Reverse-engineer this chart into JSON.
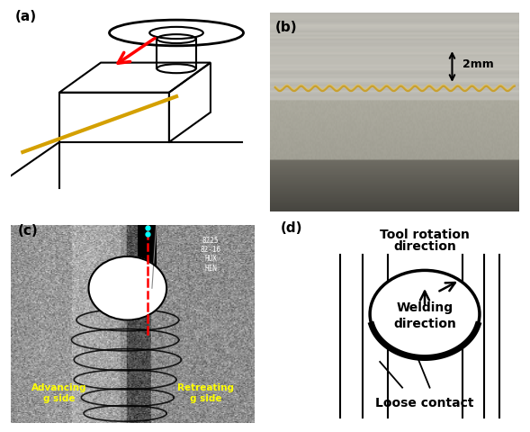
{
  "fig_width": 5.89,
  "fig_height": 4.8,
  "dpi": 100,
  "bg_color": "#ffffff",
  "panel_a_label": "(a)",
  "panel_b_label": "(b)",
  "panel_c_label": "(c)",
  "panel_d_label": "(d)",
  "panel_d_title1": "Tool rotation",
  "panel_d_title2": "direction",
  "panel_d_text1": "Welding",
  "panel_d_text2": "direction",
  "panel_d_text3": "Loose contact",
  "panel_b_scale": "2mm",
  "advancing_label": "Advancing\ng side",
  "retreating_label": "Retreating\ng side"
}
